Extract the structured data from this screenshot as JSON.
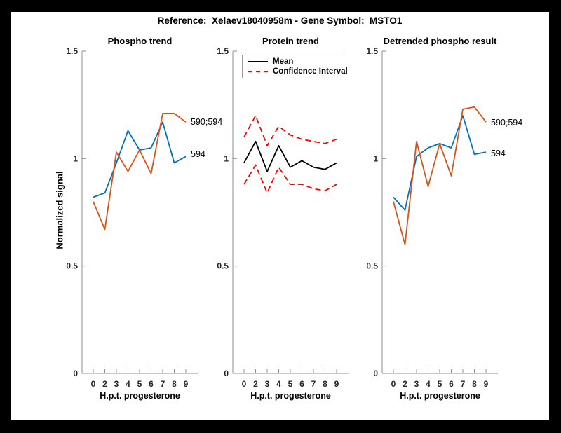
{
  "header": {
    "title": "Reference:  Xelaev18040958m - Gene Symbol:  MSTO1"
  },
  "ylabel": "Normalized signal",
  "colors": {
    "blue": "#0072BD",
    "orange": "#D95319",
    "red": "#FF0000",
    "black": "#000000",
    "axis_line": "#8f8f8f",
    "tick_text": "#262626",
    "background": "#ffffff",
    "frame": "#000000"
  },
  "axis": {
    "x_tick_labels": [
      "0",
      "2",
      "3",
      "4",
      "5",
      "6",
      "7",
      "8",
      "9"
    ],
    "y_tick_labels": [
      "0",
      "0.5",
      "1",
      "1.5"
    ],
    "y_tick_values": [
      0,
      0.5,
      1,
      1.5
    ]
  },
  "chart_data": [
    {
      "type": "line",
      "title": "Phospho trend",
      "xlabel": "H.p.t. progesterone",
      "ylabel": "Normalized signal",
      "x": [
        0,
        2,
        3,
        4,
        5,
        6,
        7,
        8,
        9
      ],
      "ylim": [
        0,
        1.5
      ],
      "grid": false,
      "series": [
        {
          "name": "594",
          "color": "#0072BD",
          "dash": false,
          "values": [
            0.82,
            0.84,
            0.98,
            1.13,
            1.04,
            1.05,
            1.17,
            0.98,
            1.01
          ]
        },
        {
          "name": "590;594",
          "color": "#D95319",
          "dash": false,
          "values": [
            0.8,
            0.67,
            1.03,
            0.94,
            1.04,
            0.93,
            1.21,
            1.21,
            1.17
          ]
        }
      ]
    },
    {
      "type": "line",
      "title": "Protein trend",
      "xlabel": "H.p.t. progesterone",
      "x": [
        0,
        2,
        3,
        4,
        5,
        6,
        7,
        8,
        9
      ],
      "ylim": [
        0,
        1.5
      ],
      "grid": false,
      "legend_position": "top-left",
      "series": [
        {
          "name": "Mean",
          "color": "#000000",
          "dash": false,
          "values": [
            0.98,
            1.08,
            0.94,
            1.06,
            0.96,
            0.99,
            0.96,
            0.95,
            0.98
          ]
        },
        {
          "name": "Confidence Interval",
          "color": "#FF0000",
          "dash": true,
          "values_upper": [
            1.1,
            1.2,
            1.06,
            1.15,
            1.11,
            1.09,
            1.08,
            1.07,
            1.09
          ],
          "values_lower": [
            0.88,
            0.97,
            0.84,
            0.96,
            0.88,
            0.88,
            0.86,
            0.85,
            0.88
          ]
        }
      ]
    },
    {
      "type": "line",
      "title": "Detrended phospho result",
      "xlabel": "H.p.t. progesterone",
      "x": [
        0,
        2,
        3,
        4,
        5,
        6,
        7,
        8,
        9
      ],
      "ylim": [
        0,
        1.5
      ],
      "grid": false,
      "series": [
        {
          "name": "594",
          "color": "#0072BD",
          "dash": false,
          "values": [
            0.82,
            0.76,
            1.01,
            1.05,
            1.07,
            1.05,
            1.2,
            1.02,
            1.03
          ]
        },
        {
          "name": "590;594",
          "color": "#D95319",
          "dash": false,
          "values": [
            0.8,
            0.6,
            1.08,
            0.87,
            1.07,
            0.92,
            1.23,
            1.24,
            1.17
          ]
        }
      ]
    }
  ]
}
